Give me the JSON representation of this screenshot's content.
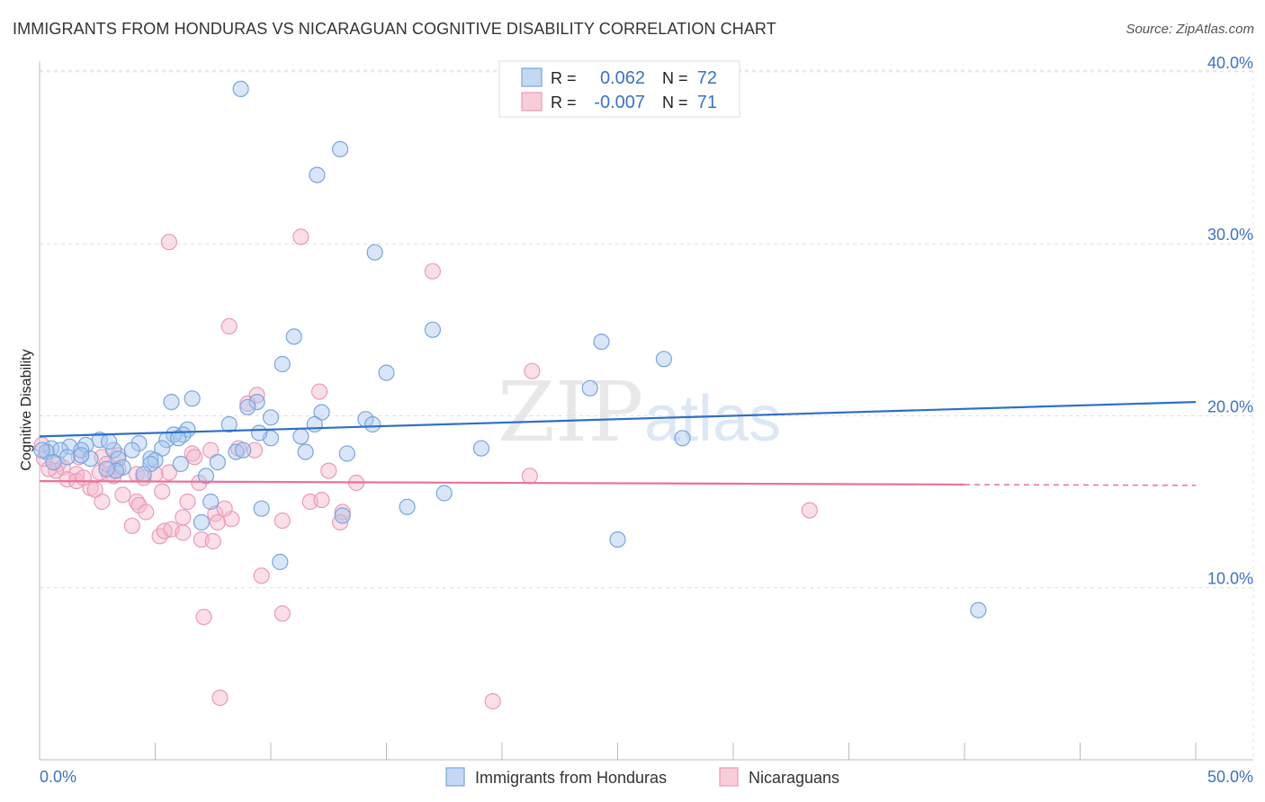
{
  "header": {
    "title": "IMMIGRANTS FROM HONDURAS VS NICARAGUAN COGNITIVE DISABILITY CORRELATION CHART",
    "source": "Source: ZipAtlas.com"
  },
  "watermark": {
    "zip": "ZIP",
    "atlas": "atlas"
  },
  "legend_top": [
    {
      "r_label": "R =",
      "r_value": "0.062",
      "n_label": "N =",
      "n_value": "72"
    },
    {
      "r_label": "R =",
      "r_value": "-0.007",
      "n_label": "N =",
      "n_value": "71"
    }
  ],
  "legend_bottom": [
    {
      "label": "Immigrants from Honduras"
    },
    {
      "label": "Nicaraguans"
    }
  ],
  "colors": {
    "honduras_fill": "#a9c8f0",
    "honduras_stroke": "#7aa5de",
    "honduras_line": "#2d6fc9",
    "nicaraguans_fill": "#f5b8cb",
    "nicaraguans_stroke": "#ec9ab5",
    "nicaraguans_line": "#e8729a",
    "tick_text": "#3a73c4"
  },
  "chart_data": {
    "type": "scatter",
    "title": "IMMIGRANTS FROM HONDURAS VS NICARAGUAN COGNITIVE DISABILITY CORRELATION CHART",
    "xlabel": "",
    "ylabel": "Cognitive Disability",
    "xlim": [
      0,
      50
    ],
    "ylim": [
      0,
      42
    ],
    "x_tick_labels": [
      "0.0%",
      "50.0%"
    ],
    "y_ticks": [
      10,
      20,
      30,
      40
    ],
    "y_tick_labels": [
      "10.0%",
      "20.0%",
      "30.0%",
      "40.0%"
    ],
    "grid": true,
    "legend_placement": "top-center",
    "series": [
      {
        "name": "Immigrants from Honduras",
        "r": 0.062,
        "n": 72,
        "trend": {
          "x": [
            0,
            50
          ],
          "y": [
            18.8,
            20.8
          ]
        },
        "points": [
          [
            8.7,
            39.0
          ],
          [
            13.0,
            35.5
          ],
          [
            12.0,
            34.0
          ],
          [
            14.5,
            29.5
          ],
          [
            17.0,
            25.0
          ],
          [
            11.0,
            24.6
          ],
          [
            24.3,
            24.3
          ],
          [
            27.0,
            23.3
          ],
          [
            10.5,
            23.0
          ],
          [
            15.0,
            22.5
          ],
          [
            23.8,
            21.6
          ],
          [
            6.6,
            21.0
          ],
          [
            5.7,
            20.8
          ],
          [
            9.4,
            20.8
          ],
          [
            9.0,
            20.5
          ],
          [
            12.2,
            20.2
          ],
          [
            10.0,
            19.9
          ],
          [
            14.1,
            19.8
          ],
          [
            14.4,
            19.5
          ],
          [
            8.2,
            19.5
          ],
          [
            11.9,
            19.5
          ],
          [
            6.4,
            19.2
          ],
          [
            6.2,
            18.9
          ],
          [
            5.8,
            18.9
          ],
          [
            11.3,
            18.8
          ],
          [
            10.0,
            18.7
          ],
          [
            5.5,
            18.6
          ],
          [
            2.6,
            18.6
          ],
          [
            27.8,
            18.7
          ],
          [
            4.3,
            18.4
          ],
          [
            2.0,
            18.3
          ],
          [
            1.3,
            18.2
          ],
          [
            0.5,
            18.1
          ],
          [
            0.9,
            18.0
          ],
          [
            0.3,
            17.9
          ],
          [
            0.1,
            18.0
          ],
          [
            3.2,
            18.0
          ],
          [
            4.0,
            18.0
          ],
          [
            1.8,
            18.0
          ],
          [
            5.3,
            18.1
          ],
          [
            8.5,
            17.9
          ],
          [
            8.8,
            18.0
          ],
          [
            11.5,
            17.9
          ],
          [
            13.3,
            17.8
          ],
          [
            19.1,
            18.1
          ],
          [
            1.2,
            17.6
          ],
          [
            2.2,
            17.5
          ],
          [
            3.4,
            17.5
          ],
          [
            1.8,
            17.7
          ],
          [
            4.8,
            17.5
          ],
          [
            5.0,
            17.4
          ],
          [
            6.1,
            17.2
          ],
          [
            7.7,
            17.3
          ],
          [
            0.6,
            17.3
          ],
          [
            3.6,
            17.0
          ],
          [
            3.3,
            16.8
          ],
          [
            4.8,
            17.2
          ],
          [
            2.9,
            16.9
          ],
          [
            7.2,
            16.5
          ],
          [
            4.5,
            16.6
          ],
          [
            7.4,
            15.0
          ],
          [
            17.5,
            15.5
          ],
          [
            15.9,
            14.7
          ],
          [
            9.6,
            14.6
          ],
          [
            13.1,
            14.2
          ],
          [
            7.0,
            13.8
          ],
          [
            25.0,
            12.8
          ],
          [
            10.4,
            11.5
          ],
          [
            40.6,
            8.7
          ],
          [
            3.0,
            18.5
          ],
          [
            6.0,
            18.7
          ],
          [
            9.5,
            19.0
          ]
        ]
      },
      {
        "name": "Nicaraguans",
        "r": -0.007,
        "n": 71,
        "trend": {
          "x": [
            0,
            40
          ],
          "y": [
            16.2,
            16.0
          ]
        },
        "trend_dashed": {
          "x": [
            40,
            50
          ],
          "y": [
            16.0,
            15.95
          ]
        },
        "points": [
          [
            5.6,
            30.1
          ],
          [
            11.3,
            30.4
          ],
          [
            17.0,
            28.4
          ],
          [
            8.2,
            25.2
          ],
          [
            21.3,
            22.6
          ],
          [
            12.1,
            21.4
          ],
          [
            9.4,
            21.2
          ],
          [
            9.0,
            20.7
          ],
          [
            8.6,
            18.1
          ],
          [
            9.3,
            18.0
          ],
          [
            7.4,
            18.0
          ],
          [
            6.6,
            17.8
          ],
          [
            3.4,
            17.7
          ],
          [
            2.7,
            17.6
          ],
          [
            1.7,
            17.6
          ],
          [
            0.1,
            18.3
          ],
          [
            0.2,
            17.5
          ],
          [
            0.8,
            17.2
          ],
          [
            1.0,
            17.0
          ],
          [
            0.7,
            16.8
          ],
          [
            1.6,
            16.6
          ],
          [
            2.6,
            16.7
          ],
          [
            3.4,
            16.9
          ],
          [
            3.0,
            16.6
          ],
          [
            4.2,
            16.6
          ],
          [
            5.6,
            16.7
          ],
          [
            6.7,
            17.6
          ],
          [
            12.5,
            16.8
          ],
          [
            13.7,
            16.1
          ],
          [
            21.2,
            16.5
          ],
          [
            1.2,
            16.3
          ],
          [
            1.6,
            16.2
          ],
          [
            2.2,
            15.8
          ],
          [
            2.4,
            15.7
          ],
          [
            3.6,
            15.4
          ],
          [
            5.3,
            15.6
          ],
          [
            2.7,
            15.0
          ],
          [
            4.2,
            15.0
          ],
          [
            4.3,
            14.8
          ],
          [
            6.4,
            15.0
          ],
          [
            11.7,
            15.0
          ],
          [
            12.2,
            15.1
          ],
          [
            4.6,
            14.4
          ],
          [
            6.2,
            14.1
          ],
          [
            7.6,
            14.3
          ],
          [
            8.3,
            14.0
          ],
          [
            13.1,
            14.4
          ],
          [
            33.3,
            14.5
          ],
          [
            4.0,
            13.6
          ],
          [
            5.2,
            13.0
          ],
          [
            5.4,
            13.3
          ],
          [
            5.7,
            13.4
          ],
          [
            6.2,
            13.2
          ],
          [
            7.7,
            13.8
          ],
          [
            10.5,
            13.9
          ],
          [
            13.0,
            13.8
          ],
          [
            7.0,
            12.8
          ],
          [
            7.5,
            12.7
          ],
          [
            9.6,
            10.7
          ],
          [
            7.1,
            8.3
          ],
          [
            10.5,
            8.5
          ],
          [
            7.8,
            3.6
          ],
          [
            19.6,
            3.4
          ],
          [
            3.2,
            16.5
          ],
          [
            4.5,
            16.4
          ],
          [
            6.9,
            16.1
          ],
          [
            0.4,
            16.9
          ],
          [
            1.9,
            16.4
          ],
          [
            2.9,
            17.2
          ],
          [
            5.0,
            16.6
          ],
          [
            8.0,
            14.6
          ]
        ]
      }
    ]
  }
}
